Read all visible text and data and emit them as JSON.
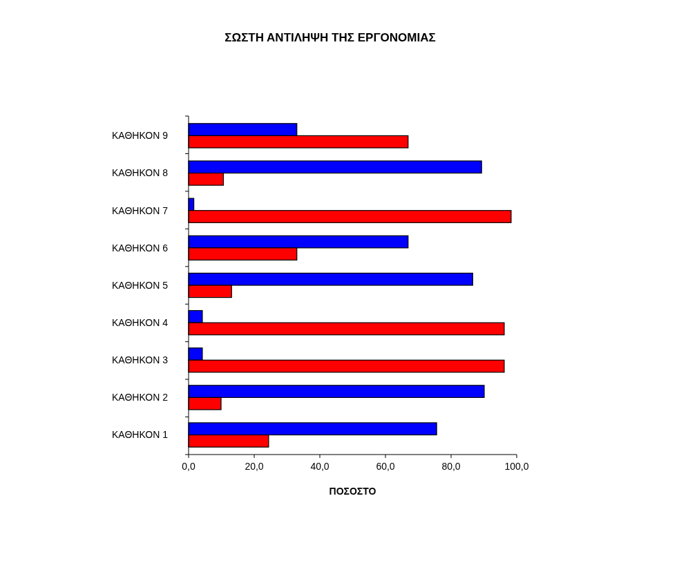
{
  "chart_data": {
    "type": "bar",
    "orientation": "horizontal",
    "title": "ΣΩΣΤΗ ΑΝΤΙΛΗΨΗ ΤΗΣ ΕΡΓΟΝΟΜΙΑΣ",
    "xlabel": "ΠΟΣΟΣΤΟ",
    "categories": [
      "ΚΑΘΗΚΟΝ 9",
      "ΚΑΘΗΚΟΝ 8",
      "ΚΑΘΗΚΟΝ 7",
      "ΚΑΘΗΚΟΝ 6",
      "ΚΑΘΗΚΟΝ 5",
      "ΚΑΘΗΚΟΝ 4",
      "ΚΑΘΗΚΟΝ 3",
      "ΚΑΘΗΚΟΝ 2",
      "ΚΑΘΗΚΟΝ 1"
    ],
    "series": [
      {
        "color": "#0000ff",
        "values": [
          33.0,
          89.3,
          1.6,
          66.9,
          86.6,
          4.2,
          4.2,
          90.1,
          75.6
        ]
      },
      {
        "color": "#ff0000",
        "values": [
          66.9,
          10.6,
          98.3,
          33.0,
          13.1,
          96.2,
          96.2,
          9.9,
          24.4
        ]
      }
    ],
    "xlim": [
      0,
      100
    ],
    "xticks": [
      {
        "value": 0,
        "label": "0,0"
      },
      {
        "value": 20,
        "label": "20,0"
      },
      {
        "value": 40,
        "label": "40,0"
      },
      {
        "value": 60,
        "label": "60,0"
      },
      {
        "value": 80,
        "label": "80,0"
      },
      {
        "value": 100,
        "label": "100,0"
      }
    ],
    "grid": false
  }
}
